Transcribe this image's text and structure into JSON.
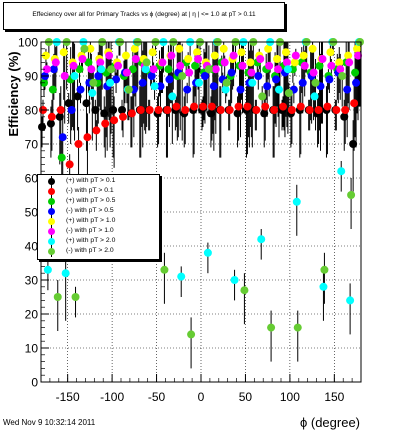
{
  "chart_data": {
    "type": "scatter",
    "title": "Effeciency over all for Primary Tracks vs ϕ (degree) at | η | <= 1.0 at pT > 0.11",
    "xlabel": "ϕ (degree)",
    "ylabel": "Efficiency (%)",
    "xlim": [
      -180,
      180
    ],
    "ylim": [
      0,
      100
    ],
    "x_ticks": [
      -150,
      -100,
      -50,
      0,
      50,
      100,
      150
    ],
    "y_ticks": [
      0,
      10,
      20,
      30,
      40,
      50,
      60,
      70,
      80,
      90,
      100
    ],
    "grid": true,
    "legend_position": "left-middle",
    "series": [
      {
        "name": "(+) with pT > 0.1",
        "color": "#000000",
        "x": [
          -175,
          -165,
          -155,
          -145,
          -135,
          -125,
          -115,
          -105,
          -95,
          -85,
          -75,
          -65,
          -55,
          -45,
          -35,
          -25,
          -15,
          -5,
          5,
          15,
          25,
          35,
          45,
          55,
          65,
          75,
          85,
          95,
          105,
          115,
          125,
          135,
          145,
          155,
          165,
          175
        ],
        "y": [
          75,
          76,
          78,
          82,
          84,
          82,
          80,
          79,
          80,
          80,
          79,
          80,
          80,
          79,
          80,
          80,
          79,
          80,
          80,
          79,
          80,
          80,
          79,
          80,
          80,
          79,
          80,
          80,
          79,
          80,
          80,
          79,
          80,
          80,
          78,
          70
        ]
      },
      {
        "name": "(-) with pT > 0.1",
        "color": "#ff0000",
        "x": [
          -175,
          -165,
          -155,
          -145,
          -135,
          -125,
          -115,
          -105,
          -95,
          -85,
          -75,
          -65,
          -55,
          -45,
          -35,
          -25,
          -15,
          -5,
          5,
          15,
          25,
          35,
          45,
          55,
          65,
          75,
          85,
          95,
          105,
          115,
          125,
          135,
          145,
          155,
          165,
          175
        ],
        "y": [
          80,
          78,
          80,
          64,
          70,
          72,
          74,
          76,
          77,
          78,
          79,
          80,
          80,
          80,
          80,
          81,
          80,
          81,
          81,
          81,
          80,
          80,
          81,
          81,
          80,
          81,
          80,
          81,
          80,
          81,
          80,
          80,
          81,
          80,
          80,
          82
        ]
      },
      {
        "name": "(+) with pT > 0.5",
        "color": "#00cc00",
        "x": [
          -175,
          -165,
          -155,
          -145,
          -135,
          -125,
          -115,
          -105,
          -95,
          -85,
          -75,
          -65,
          -55,
          -45,
          -35,
          -25,
          -15,
          -5,
          5,
          15,
          25,
          35,
          45,
          55,
          65,
          75,
          85,
          95,
          105,
          115,
          125,
          135,
          145,
          155,
          165,
          175
        ],
        "y": [
          88,
          86,
          66,
          89,
          92,
          94,
          88,
          91,
          93,
          90,
          92,
          94,
          91,
          93,
          92,
          90,
          94,
          93,
          91,
          92,
          94,
          90,
          93,
          91,
          94,
          92,
          90,
          93,
          92,
          94,
          91,
          93,
          90,
          92,
          94,
          91
        ]
      },
      {
        "name": "(-) with pT > 0.5",
        "color": "#0000ff",
        "x": [
          -175,
          -165,
          -155,
          -145,
          -135,
          -125,
          -115,
          -105,
          -95,
          -85,
          -75,
          -65,
          -55,
          -45,
          -35,
          -25,
          -15,
          -5,
          5,
          15,
          25,
          35,
          45,
          55,
          65,
          75,
          85,
          95,
          105,
          115,
          125,
          135,
          145,
          155,
          165,
          175
        ],
        "y": [
          90,
          92,
          72,
          80,
          86,
          88,
          90,
          87,
          89,
          91,
          86,
          88,
          90,
          87,
          89,
          91,
          86,
          88,
          90,
          87,
          89,
          91,
          86,
          88,
          90,
          87,
          89,
          91,
          86,
          88,
          90,
          87,
          89,
          91,
          86,
          88
        ]
      },
      {
        "name": "(+) with pT > 1.0",
        "color": "#ffff00",
        "x": [
          -175,
          -165,
          -155,
          -145,
          -135,
          -125,
          -115,
          -105,
          -95,
          -85,
          -75,
          -65,
          -55,
          -45,
          -35,
          -25,
          -15,
          -5,
          5,
          15,
          25,
          35,
          45,
          55,
          65,
          75,
          85,
          95,
          105,
          115,
          125,
          135,
          145,
          155,
          165,
          175
        ],
        "y": [
          96,
          95,
          97,
          94,
          96,
          98,
          95,
          97,
          94,
          96,
          98,
          95,
          97,
          94,
          96,
          98,
          95,
          97,
          94,
          96,
          98,
          95,
          97,
          94,
          96,
          98,
          95,
          97,
          94,
          96,
          98,
          95,
          97,
          94,
          96,
          98
        ]
      },
      {
        "name": "(-) with pT > 1.0",
        "color": "#ff00ff",
        "x": [
          -175,
          -165,
          -155,
          -145,
          -135,
          -125,
          -115,
          -105,
          -95,
          -85,
          -75,
          -65,
          -55,
          -45,
          -35,
          -25,
          -15,
          -5,
          5,
          15,
          25,
          35,
          45,
          55,
          65,
          75,
          85,
          95,
          105,
          115,
          125,
          135,
          145,
          155,
          165,
          175
        ],
        "y": [
          92,
          94,
          90,
          93,
          95,
          92,
          94,
          96,
          93,
          91,
          95,
          93,
          92,
          94,
          96,
          93,
          91,
          95,
          93,
          92,
          94,
          96,
          93,
          91,
          95,
          93,
          92,
          94,
          96,
          93,
          91,
          95,
          93,
          92,
          94,
          96
        ]
      },
      {
        "name": "(+) with pT > 2.0",
        "color": "#00ffff",
        "x": [
          -175,
          -165,
          -155,
          -145,
          -135,
          -125,
          -115,
          -105,
          -95,
          -85,
          -75,
          -65,
          -55,
          -45,
          -35,
          -25,
          -15,
          -5,
          5,
          15,
          25,
          35,
          45,
          55,
          65,
          75,
          85,
          95,
          105,
          115,
          125,
          135,
          145,
          155,
          165,
          175
        ],
        "y": [
          33,
          100,
          32,
          90,
          100,
          85,
          92,
          88,
          100,
          86,
          100,
          92,
          87,
          100,
          84,
          31,
          100,
          88,
          38,
          100,
          86,
          30,
          100,
          88,
          42,
          100,
          86,
          92,
          53,
          100,
          84,
          28,
          100,
          62,
          24,
          100
        ]
      },
      {
        "name": "(-) with pT > 2.0",
        "color": "#66cc33",
        "x": [
          -175,
          -165,
          -155,
          -145,
          -135,
          -125,
          -115,
          -105,
          -95,
          -85,
          -75,
          -65,
          -55,
          -45,
          -35,
          -25,
          -15,
          -5,
          5,
          15,
          25,
          35,
          45,
          55,
          65,
          75,
          85,
          95,
          105,
          115,
          125,
          135,
          145,
          155,
          165,
          175
        ],
        "y": [
          100,
          25,
          100,
          25,
          98,
          88,
          100,
          92,
          100,
          86,
          100,
          94,
          100,
          33,
          100,
          90,
          14,
          100,
          92,
          100,
          88,
          100,
          27,
          100,
          84,
          16,
          100,
          85,
          16,
          100,
          88,
          33,
          100,
          90,
          55,
          100
        ]
      }
    ]
  },
  "footer": {
    "timestamp": "Wed Nov  9 10:32:14 2011"
  }
}
